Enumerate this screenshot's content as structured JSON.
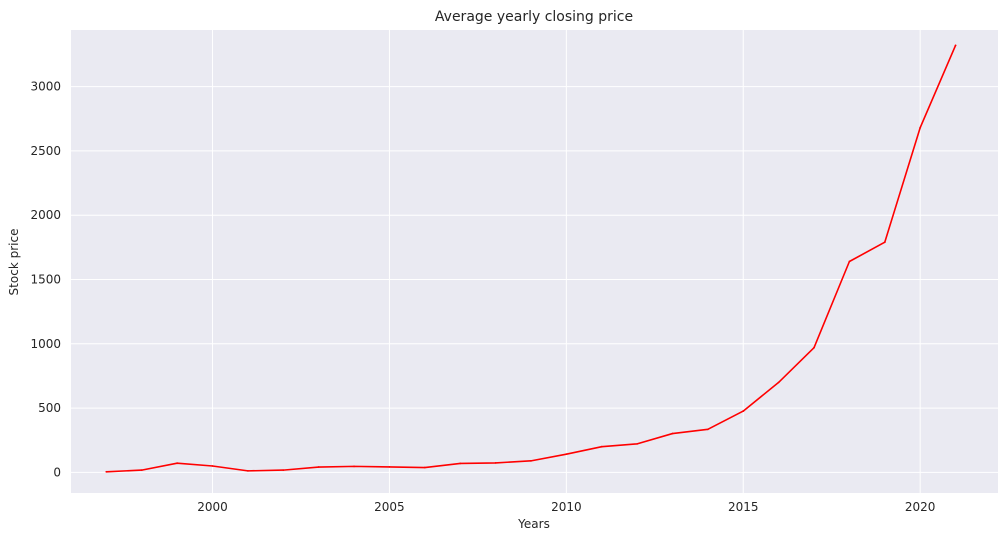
{
  "chart_data": {
    "type": "line",
    "title": "Average yearly closing price",
    "xlabel": "Years",
    "ylabel": "Stock price",
    "xlim": [
      1996.0,
      2022.2
    ],
    "ylim": [
      -160,
      3440
    ],
    "xticks": [
      2000,
      2005,
      2010,
      2015,
      2020
    ],
    "yticks": [
      0,
      500,
      1000,
      1500,
      2000,
      2500,
      3000
    ],
    "grid": true,
    "colors": {
      "line": "#ff0000",
      "plot_background": "#eaeaf2",
      "grid": "#ffffff"
    },
    "series": [
      {
        "x": [
          1997,
          1998,
          1999,
          2000,
          2001,
          2002,
          2003,
          2004,
          2005,
          2006,
          2007,
          2008,
          2009,
          2010,
          2011,
          2012,
          2013,
          2014,
          2015,
          2016,
          2017,
          2018,
          2019,
          2020,
          2021
        ],
        "values": [
          5,
          18,
          72,
          50,
          12,
          18,
          42,
          47,
          43,
          38,
          70,
          74,
          90,
          142,
          200,
          222,
          302,
          335,
          477,
          700,
          970,
          1640,
          1790,
          2680,
          3320
        ]
      }
    ]
  }
}
